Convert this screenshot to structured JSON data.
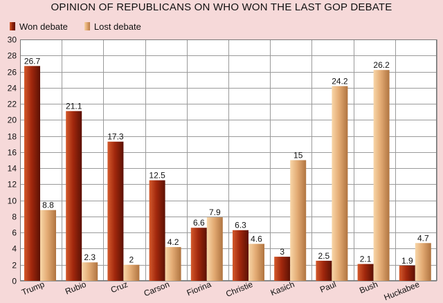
{
  "chart_data": {
    "type": "bar",
    "title": "OPINION OF REPUBLICANS ON WHO WON THE LAST GOP DEBATE",
    "xlabel": "",
    "ylabel": "",
    "ylim": [
      0,
      30
    ],
    "yticks": [
      0,
      2,
      4,
      6,
      8,
      10,
      12,
      14,
      16,
      18,
      20,
      22,
      24,
      26,
      28,
      30
    ],
    "grid": true,
    "legend_position": "top-left",
    "categories": [
      "Trump",
      "Rubio",
      "Cruz",
      "Carson",
      "Fiorina",
      "Christie",
      "Kasich",
      "Paul",
      "Bush",
      "Huckabee"
    ],
    "series": [
      {
        "name": "Won debate",
        "values": [
          26.7,
          21.1,
          17.3,
          12.5,
          6.6,
          6.3,
          3,
          2.5,
          2.1,
          1.9
        ]
      },
      {
        "name": "Lost debate",
        "values": [
          8.8,
          2.3,
          2,
          4.2,
          7.9,
          4.6,
          15,
          24.2,
          26.2,
          4.7
        ]
      }
    ]
  }
}
